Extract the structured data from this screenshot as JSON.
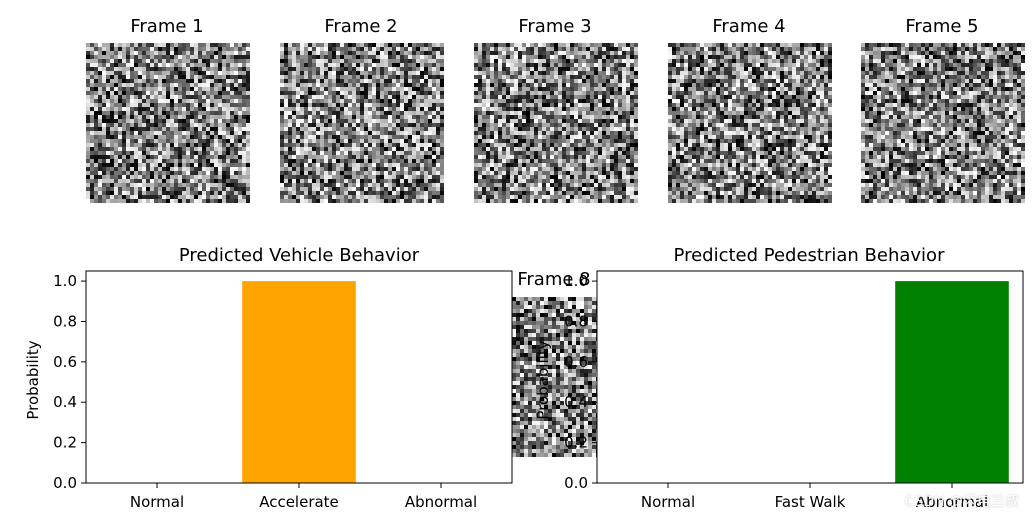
{
  "frames": {
    "titles": [
      "Frame 1",
      "Frame 2",
      "Frame 3",
      "Frame 4",
      "Frame 5"
    ],
    "overlay_title": "Frame 8"
  },
  "chart_data": [
    {
      "type": "bar",
      "title": "Predicted Vehicle Behavior",
      "categories": [
        "Normal",
        "Accelerate",
        "Abnormal"
      ],
      "values": [
        0,
        1,
        0
      ],
      "bar_colors": [
        "#ffa500",
        "#ffa500",
        "#ffa500"
      ],
      "ylabel": "Probability",
      "xlabel": "",
      "ylim": [
        0,
        1.05
      ],
      "yticks": [
        "0.0",
        "0.2",
        "0.4",
        "0.6",
        "0.8",
        "1.0"
      ],
      "grid": false
    },
    {
      "type": "bar",
      "title": "Predicted Pedestrian Behavior",
      "categories": [
        "Normal",
        "Fast Walk",
        "Abnormal"
      ],
      "values": [
        0,
        0,
        1
      ],
      "bar_colors": [
        "#008000",
        "#008000",
        "#008000"
      ],
      "ylabel": "Probability",
      "xlabel": "",
      "ylim": [
        0,
        1.05
      ],
      "yticks": [
        "0.0",
        "0.2",
        "0.4",
        "0.6",
        "0.8",
        "1.0"
      ],
      "grid": false
    }
  ],
  "watermark": "CSDN @闪电三叔"
}
